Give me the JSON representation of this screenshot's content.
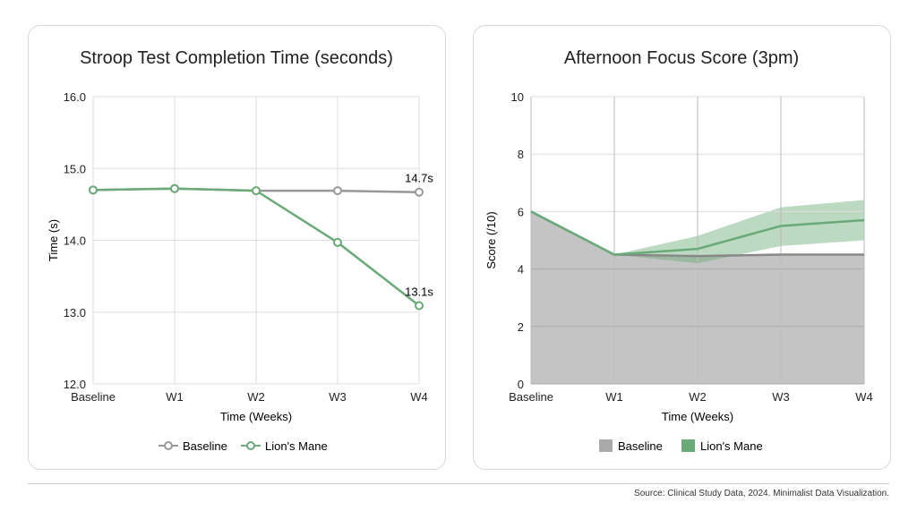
{
  "chart_data": [
    {
      "type": "line",
      "title": "Stroop Test Completion Time (seconds)",
      "xlabel": "Time (Weeks)",
      "ylabel": "Time (s)",
      "categories": [
        "Baseline",
        "W1",
        "W2",
        "W3",
        "W4"
      ],
      "ylim": [
        12,
        16
      ],
      "yticks": [
        "12.0",
        "13.0",
        "14.0",
        "15.0",
        "16.0"
      ],
      "grid": true,
      "legend": "bottom",
      "series": [
        {
          "name": "Baseline",
          "values": [
            14.7,
            14.72,
            14.69,
            14.69,
            14.67
          ],
          "color": "#999999"
        },
        {
          "name": "Lion's Mane",
          "values": [
            14.7,
            14.72,
            14.69,
            13.97,
            13.09
          ],
          "color": "#6aaa78"
        }
      ],
      "annotations": [
        {
          "text": "14.7s",
          "series": "Baseline",
          "x": "W4"
        },
        {
          "text": "13.1s",
          "series": "Lion's Mane",
          "x": "W4"
        }
      ]
    },
    {
      "type": "area",
      "title": "Afternoon Focus Score (3pm)",
      "xlabel": "Time (Weeks)",
      "ylabel": "Score (/10)",
      "categories": [
        "Baseline",
        "W1",
        "W2",
        "W3",
        "W4"
      ],
      "ylim": [
        0,
        10
      ],
      "yticks": [
        "0",
        "2",
        "4",
        "6",
        "8",
        "10"
      ],
      "grid": true,
      "legend": "bottom",
      "series": [
        {
          "name": "Baseline",
          "values": [
            6.0,
            4.5,
            4.45,
            4.5,
            4.5
          ],
          "color": "#aaaaaa"
        },
        {
          "name": "Lion's Mane",
          "values": [
            6.0,
            4.5,
            4.7,
            5.5,
            5.7
          ],
          "lower": [
            6.0,
            4.5,
            4.2,
            4.8,
            5.0
          ],
          "upper": [
            6.0,
            4.5,
            5.15,
            6.15,
            6.4
          ],
          "color": "#6aaa78"
        }
      ]
    }
  ],
  "footer": {
    "source": "Source: Clinical Study Data, 2024. Minimalist Data Visualization."
  }
}
